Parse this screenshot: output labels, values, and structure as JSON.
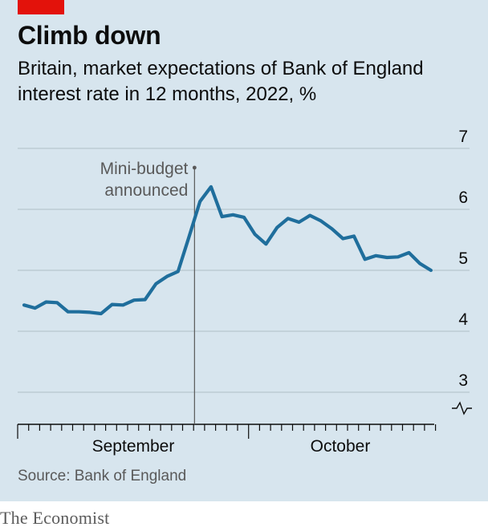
{
  "header": {
    "title": "Climb down",
    "subtitle": "Britain, market expectations of Bank of England interest rate in 12 months, 2022, %"
  },
  "chart_data": {
    "type": "line",
    "title": "Climb down",
    "subtitle": "Britain, market expectations of Bank of England interest rate in 12 months, 2022, %",
    "ylim": [
      3,
      7
    ],
    "y_ticks": [
      3,
      4,
      5,
      6,
      7
    ],
    "axis_break": true,
    "x_month_labels": [
      "September",
      "October"
    ],
    "grid": true,
    "series": [
      {
        "values": [
          4.43,
          4.38,
          4.48,
          4.47,
          4.32,
          4.32,
          4.31,
          4.29,
          4.44,
          4.43,
          4.51,
          4.52,
          4.78,
          4.9,
          4.98,
          5.55,
          6.13,
          6.37,
          5.88,
          5.91,
          5.87,
          5.59,
          5.43,
          5.7,
          5.85,
          5.79,
          5.9,
          5.81,
          5.68,
          5.52,
          5.56,
          5.18,
          5.24,
          5.21,
          5.22,
          5.29,
          5.11,
          5.0
        ]
      }
    ],
    "annotations": [
      {
        "label_lines": [
          "Mini-budget",
          "announced"
        ],
        "at_index": 15.5
      }
    ],
    "colors": {
      "line": "#1f6e9c",
      "grid": "#b7c6cf",
      "axis": "#0c0c0c",
      "annotation": "#595959",
      "background": "#d7e5ee"
    }
  },
  "footer": {
    "source": "Source: Bank of England",
    "brand": "The Economist"
  }
}
